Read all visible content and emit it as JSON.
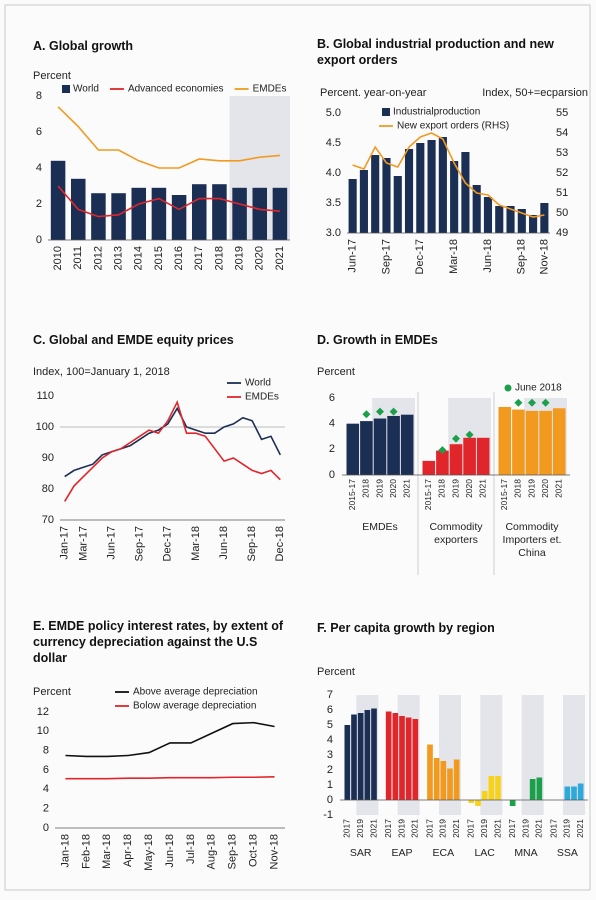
{
  "chart_data": [
    {
      "type": "combo",
      "title": "A. Global growth",
      "ylabel": "Percent",
      "categories": [
        "2010",
        "2011",
        "2012",
        "2013",
        "2014",
        "2015",
        "2016",
        "2017",
        "2018",
        "2019",
        "2020",
        "2021"
      ],
      "series": [
        {
          "name": "World",
          "type": "bar",
          "color": "#1b2f55",
          "values": [
            4.4,
            3.4,
            2.6,
            2.6,
            2.9,
            2.9,
            2.5,
            3.1,
            3.1,
            2.9,
            2.9,
            2.9
          ]
        },
        {
          "name": "Advanced economies",
          "type": "line",
          "color": "#e0262a",
          "values": [
            3.0,
            1.7,
            1.3,
            1.4,
            2.0,
            2.3,
            1.7,
            2.3,
            2.3,
            2.0,
            1.7,
            1.6
          ]
        },
        {
          "name": "EMDEs",
          "type": "line",
          "color": "#f29a20",
          "values": [
            7.4,
            6.3,
            5.0,
            5.0,
            4.4,
            4.0,
            4.0,
            4.5,
            4.4,
            4.4,
            4.6,
            4.7
          ]
        }
      ],
      "ylim": [
        0,
        8
      ],
      "yticks": [
        0,
        2,
        4,
        6,
        8
      ],
      "shade": [
        "2019",
        "2021"
      ]
    },
    {
      "type": "combo",
      "title": "B. Global industrial production and new export orders",
      "ylabel": "Percent. year-on-year",
      "y2label": "Index, 50+=ecparsion",
      "categories": [
        "Jun-17",
        null,
        null,
        "Sep-17",
        null,
        null,
        "Dec-17",
        null,
        null,
        "Mar-18",
        null,
        null,
        "Jun-18",
        null,
        null,
        "Sep-18",
        null,
        "Nov-18"
      ],
      "series": [
        {
          "name": "Industrialproduction",
          "type": "bar",
          "color": "#1b2f55",
          "values": [
            3.9,
            4.05,
            4.3,
            4.25,
            3.95,
            4.4,
            4.5,
            4.55,
            4.6,
            4.2,
            4.35,
            3.8,
            3.6,
            3.45,
            3.45,
            3.4,
            3.3,
            3.5
          ]
        },
        {
          "name": "New export orders (RHS)",
          "type": "line",
          "axis": "y2",
          "color": "#f29a20",
          "values": [
            52.4,
            52.2,
            53.3,
            52.5,
            52.3,
            53.3,
            53.8,
            54.0,
            53.7,
            52.5,
            51.5,
            51.0,
            50.9,
            50.4,
            50.2,
            50.0,
            49.8,
            49.9
          ]
        }
      ],
      "ylim": [
        3,
        5
      ],
      "yticks": [
        {
          "value": 3,
          "label": "3.0"
        },
        {
          "value": 3.5,
          "label": "3.5"
        },
        {
          "value": 4,
          "label": "4.0"
        },
        {
          "value": 4.5,
          "label": "4.5"
        },
        {
          "value": 5,
          "label": "5.0"
        }
      ],
      "y2lim": [
        49,
        55
      ],
      "y2ticks": [
        49,
        50,
        51,
        52,
        53,
        54,
        55
      ]
    },
    {
      "type": "line",
      "title": "C. Global and EMDE equity prices",
      "subtitle": "Index, 100=January 1, 2018",
      "categories": [
        "Jan-17",
        null,
        "Mar-17",
        null,
        null,
        "Jun-17",
        null,
        null,
        "Sep-17",
        null,
        null,
        "Dec-17",
        null,
        null,
        "Mar-18",
        null,
        null,
        "Jun-18",
        null,
        null,
        "Sep-18",
        null,
        null,
        "Dec-18"
      ],
      "series": [
        {
          "name": "World",
          "color": "#1b2f55",
          "values": [
            84,
            86,
            87,
            88,
            91,
            92,
            93,
            94,
            96,
            98,
            99,
            101,
            106,
            100,
            99,
            98,
            98,
            100,
            101,
            103,
            102,
            96,
            97,
            91
          ]
        },
        {
          "name": "EMDEs",
          "color": "#e0262a",
          "values": [
            76,
            81,
            84,
            87,
            90,
            92,
            93,
            95,
            97,
            99,
            98,
            102,
            108,
            98,
            98,
            97,
            93,
            89,
            90,
            88,
            86,
            85,
            86,
            83
          ]
        }
      ],
      "ylim": [
        70,
        110
      ],
      "yticks": [
        70,
        80,
        90,
        100,
        110
      ],
      "hline": 100
    },
    {
      "type": "bar",
      "title": "D. Growth in EMDEs",
      "ylabel": "Percent",
      "categories": [
        "2015-17",
        "2018",
        "2019",
        "2020",
        "2021"
      ],
      "groups": [
        {
          "name": "EMDEs",
          "color": "#1b2f55",
          "values": [
            4.0,
            4.2,
            4.4,
            4.6,
            4.7
          ],
          "markers": [
            null,
            4.5,
            4.7,
            4.7,
            null
          ]
        },
        {
          "name": "Commodity exporters",
          "color": "#e0262a",
          "values": [
            1.1,
            1.9,
            2.4,
            2.9,
            2.9
          ],
          "markers": [
            null,
            1.7,
            2.6,
            2.9,
            null
          ]
        },
        {
          "name": "Commodity Importers et. China",
          "color": "#f29a20",
          "values": [
            5.3,
            5.1,
            5.0,
            5.0,
            5.2
          ],
          "markers": [
            null,
            5.4,
            5.4,
            5.4,
            null
          ]
        }
      ],
      "marker_name": "June 2018",
      "marker_color": "#1aa04a",
      "ylim": [
        0,
        6
      ],
      "yticks": [
        0,
        2,
        4,
        6
      ],
      "shade": [
        "2019",
        "2021"
      ],
      "dividers": true
    },
    {
      "type": "line",
      "title": "E. EMDE policy interest rates, by extent of currency depreciation against the U.S dollar",
      "ylabel": "Percent",
      "categories": [
        "Jan-18",
        "Feb-18",
        "Mar-18",
        "Apr-18",
        "May-18",
        "Jun-18",
        "Jul-18",
        "Aug-18",
        "Sep-18",
        "Oct-18",
        "Nov-18"
      ],
      "series": [
        {
          "name": "Above average depreciation",
          "color": "#111111",
          "values": [
            7.5,
            7.4,
            7.4,
            7.5,
            7.8,
            8.8,
            8.8,
            9.8,
            10.8,
            10.9,
            10.5
          ]
        },
        {
          "name": "Bolow average depreciation",
          "color": "#e0262a",
          "values": [
            5.1,
            5.1,
            5.1,
            5.15,
            5.15,
            5.2,
            5.2,
            5.2,
            5.25,
            5.25,
            5.3
          ]
        }
      ],
      "ylim": [
        0,
        12
      ],
      "yticks": [
        0,
        2,
        4,
        6,
        8,
        10,
        12
      ]
    },
    {
      "type": "bar",
      "title": "F. Per capita growth by region",
      "ylabel": "Percent",
      "categories": [
        "2017",
        null,
        "2019",
        null,
        "2021"
      ],
      "groups": [
        {
          "name": "SAR",
          "color": "#1b2f55",
          "values": [
            5.0,
            5.7,
            5.8,
            6.0,
            6.1
          ]
        },
        {
          "name": "EAP",
          "color": "#e0262a",
          "values": [
            5.9,
            5.8,
            5.6,
            5.5,
            5.4
          ]
        },
        {
          "name": "ECA",
          "color": "#f29a20",
          "values": [
            3.7,
            2.8,
            2.6,
            2.1,
            2.7
          ]
        },
        {
          "name": "LAC",
          "color": "#f7d21c",
          "values": [
            -0.2,
            -0.4,
            0.6,
            1.6,
            1.6
          ]
        },
        {
          "name": "MNA",
          "color": "#1aa04a",
          "values": [
            -0.4,
            0.0,
            0.0,
            1.4,
            1.5
          ]
        },
        {
          "name": "SSA",
          "color": "#2fa9d9",
          "values": [
            0.0,
            0.0,
            0.9,
            0.9,
            1.1
          ]
        }
      ],
      "ylim": [
        -1,
        7
      ],
      "yticks": [
        -1,
        0,
        1,
        2,
        3,
        4,
        5,
        6,
        7
      ],
      "shade": [
        "2019",
        "2021"
      ]
    }
  ]
}
